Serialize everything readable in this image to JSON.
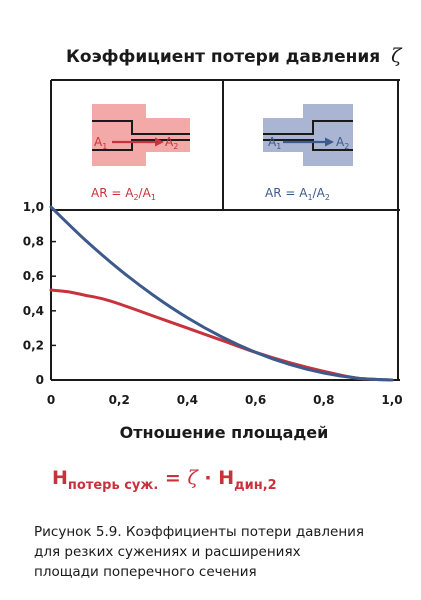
{
  "chart_data": {
    "type": "line",
    "title": "Коэффициент потери давления",
    "title_symbol": "ζ",
    "xlabel": "Отношение площадей",
    "ylabel": "",
    "xlim": [
      0,
      1.0
    ],
    "ylim": [
      0,
      1.0
    ],
    "grid": false,
    "x_ticks": [
      "0",
      "0,2",
      "0,4",
      "0,6",
      "0,8",
      "1,0"
    ],
    "y_ticks": [
      "0",
      "0,2",
      "0,4",
      "0,6",
      "0,8",
      "1,0"
    ],
    "series": [
      {
        "color": "#c8323c",
        "x": [
          0,
          0.05,
          0.1,
          0.15,
          0.2,
          0.3,
          0.4,
          0.5,
          0.6,
          0.7,
          0.8,
          0.9,
          1.0
        ],
        "y": [
          0.52,
          0.51,
          0.49,
          0.47,
          0.44,
          0.37,
          0.3,
          0.23,
          0.16,
          0.1,
          0.05,
          0.01,
          0.0
        ]
      },
      {
        "color": "#3d5a8c",
        "x": [
          0,
          0.1,
          0.2,
          0.3,
          0.4,
          0.5,
          0.6,
          0.7,
          0.8,
          0.9,
          1.0
        ],
        "y": [
          1.0,
          0.81,
          0.64,
          0.49,
          0.36,
          0.25,
          0.16,
          0.09,
          0.04,
          0.01,
          0.0
        ]
      }
    ]
  },
  "insets": {
    "left": {
      "a_in": "A",
      "a_in_sub": "1",
      "a_out": "A",
      "a_out_sub": "2",
      "ratio_prefix": "AR = A",
      "ratio_num_sub": "2",
      "ratio_mid": "/A",
      "ratio_den_sub": "1",
      "color": "#c8323c",
      "fill": "#f2a9a8"
    },
    "right": {
      "a_in": "A",
      "a_in_sub": "1",
      "a_out": "A",
      "a_out_sub": "2",
      "ratio_prefix": "AR = A",
      "ratio_num_sub": "1",
      "ratio_mid": "/A",
      "ratio_den_sub": "2",
      "color": "#3d5a8c",
      "fill": "#a9b5d3"
    }
  },
  "formula": {
    "lhs": "H",
    "lhs_sub": "потерь суж.",
    "eq": " = ",
    "zeta": "ζ",
    "dot": " · ",
    "rhs": "H",
    "rhs_sub": "дин,2"
  },
  "caption": [
    "Рисунок 5.9. Коэффициенты потери давления",
    "для резких сужениях и расширениях",
    "площади поперечного сечения"
  ]
}
